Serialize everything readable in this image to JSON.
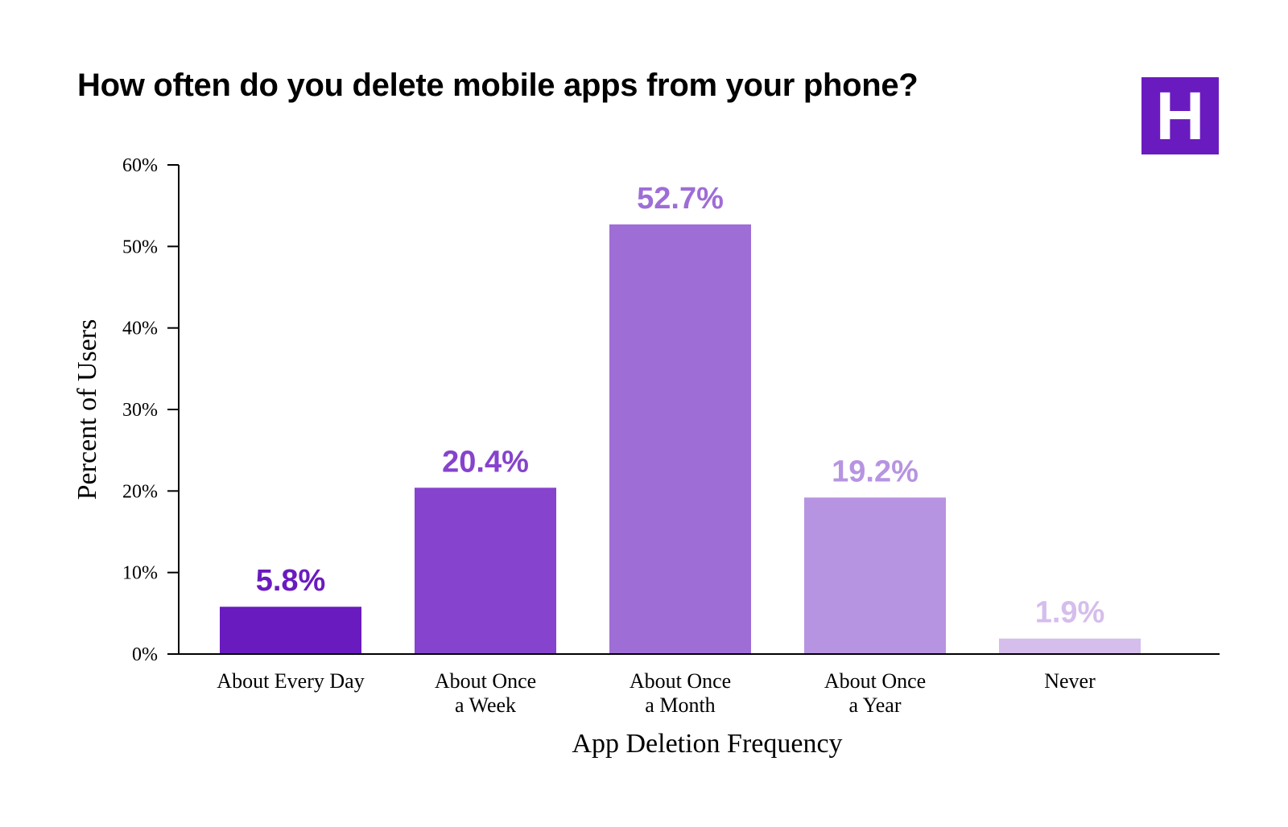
{
  "chart_data": {
    "type": "bar",
    "title": "How often do you delete mobile apps from your phone?",
    "xlabel": "App Deletion Frequency",
    "ylabel": "Percent of Users",
    "ylim": [
      0,
      60
    ],
    "yticks": [
      0,
      10,
      20,
      30,
      40,
      50,
      60
    ],
    "ytick_labels": [
      "0%",
      "10%",
      "20%",
      "30%",
      "40%",
      "50%",
      "60%"
    ],
    "categories": [
      [
        "About Every Day"
      ],
      [
        "About Once",
        "a Week"
      ],
      [
        "About Once",
        "a Month"
      ],
      [
        "About Once",
        "a Year"
      ],
      [
        "Never"
      ]
    ],
    "values": [
      5.8,
      20.4,
      52.7,
      19.2,
      1.9
    ],
    "value_labels": [
      "5.8%",
      "20.4%",
      "52.7%",
      "19.2%",
      "1.9%"
    ],
    "bar_colors": [
      "#6a1bbf",
      "#8643cd",
      "#9e6dd6",
      "#b794e1",
      "#d5bdec"
    ],
    "label_colors": [
      "#6a1bbf",
      "#8643cd",
      "#9e6dd6",
      "#b794e1",
      "#d5bdec"
    ],
    "grid": false,
    "legend": "none"
  },
  "logo": {
    "letter": "H",
    "color": "#6a1bbf"
  }
}
